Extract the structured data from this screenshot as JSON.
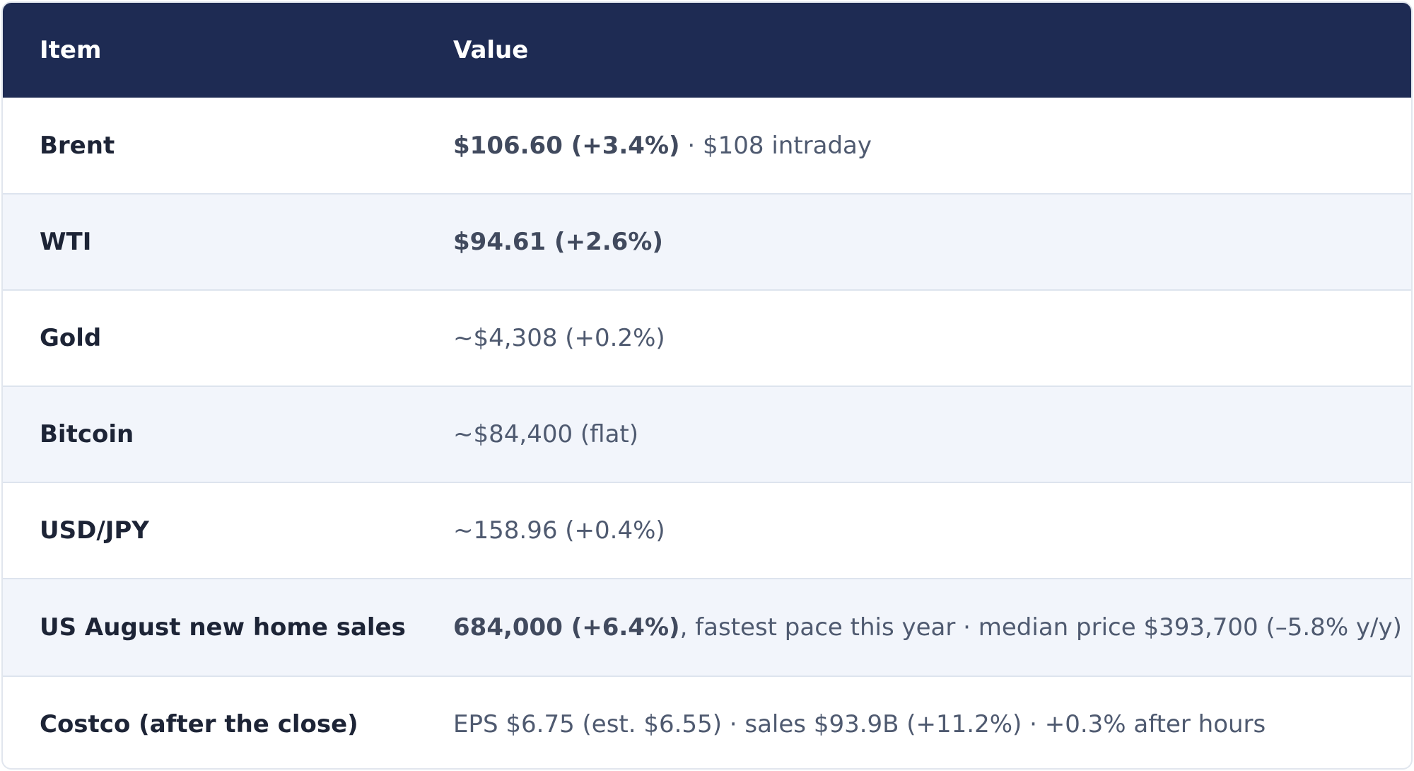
{
  "table": {
    "headers": {
      "item": "Item",
      "value": "Value"
    },
    "rows": [
      {
        "item": "Brent",
        "value_bold": "$106.60 (+3.4%)",
        "value_rest": " · $108 intraday"
      },
      {
        "item": "WTI",
        "value_bold": "$94.61 (+2.6%)",
        "value_rest": ""
      },
      {
        "item": "Gold",
        "value_bold": "",
        "value_rest": "~$4,308 (+0.2%)"
      },
      {
        "item": "Bitcoin",
        "value_bold": "",
        "value_rest": "~$84,400 (flat)"
      },
      {
        "item": "USD/JPY",
        "value_bold": "",
        "value_rest": "~158.96 (+0.4%)"
      },
      {
        "item": "US August new home sales",
        "value_bold": "684,000 (+6.4%)",
        "value_rest": ", fastest pace this year · median price $393,700 (–5.8% y/y)"
      },
      {
        "item": "Costco (after the close)",
        "value_bold": "",
        "value_rest": "EPS $6.75 (est. $6.55) · sales $93.9B (+11.2%) · +0.3% after hours"
      }
    ]
  },
  "colors": {
    "header_bg": "#1e2b53",
    "row_alt_bg": "#f2f5fb",
    "border": "#dde4ee"
  }
}
